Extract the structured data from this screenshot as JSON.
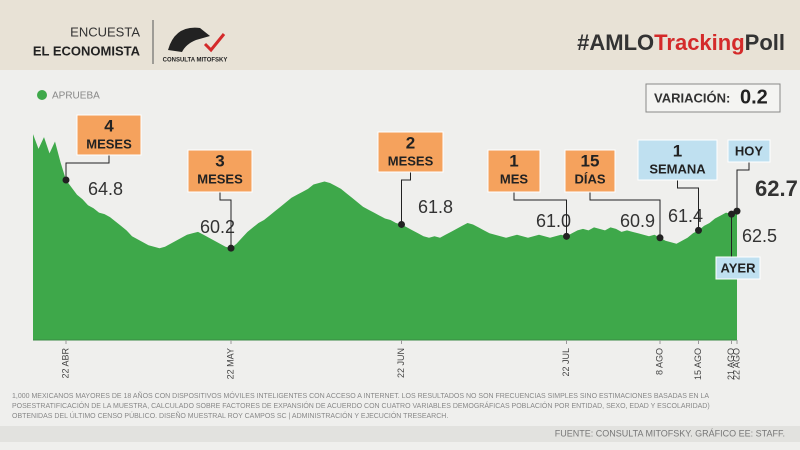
{
  "header": {
    "outlet_lines": [
      "ENCUESTA",
      "EL ECONOMISTA"
    ],
    "logo_text": "CONSULTA MITOFSKY",
    "hashtag_parts": [
      "#AMLO",
      "Tracking",
      "Poll"
    ]
  },
  "variation": {
    "label": "VARIACIÓN:",
    "value": "0.2"
  },
  "chart_data": {
    "type": "area",
    "series": [
      {
        "name": "APRUEBA",
        "color": "#3ea84a",
        "values": [
          67.9,
          66.9,
          67.7,
          66.6,
          67.4,
          66.0,
          64.8,
          64.3,
          63.8,
          63.5,
          63.1,
          62.9,
          62.6,
          62.5,
          62.3,
          62.0,
          61.7,
          61.4,
          61.0,
          60.8,
          60.6,
          60.4,
          60.3,
          60.2,
          60.3,
          60.5,
          60.7,
          60.9,
          61.1,
          61.2,
          61.3,
          61.1,
          60.9,
          60.7,
          60.5,
          60.3,
          60.2,
          60.5,
          60.9,
          61.3,
          61.6,
          61.9,
          62.1,
          62.4,
          62.7,
          63.0,
          63.3,
          63.6,
          63.8,
          64.0,
          64.2,
          64.5,
          64.6,
          64.7,
          64.6,
          64.4,
          64.2,
          63.9,
          63.6,
          63.3,
          63.0,
          62.8,
          62.6,
          62.4,
          62.2,
          62.1,
          61.9,
          61.8,
          61.6,
          61.4,
          61.2,
          61.0,
          60.9,
          61.0,
          60.9,
          61.1,
          61.3,
          61.5,
          61.7,
          61.9,
          61.8,
          61.6,
          61.4,
          61.2,
          61.1,
          61.0,
          60.9,
          61.0,
          61.1,
          61.0,
          60.9,
          61.0,
          61.1,
          61.0,
          60.9,
          61.0,
          61.1,
          61.0,
          61.2,
          61.4,
          61.5,
          61.4,
          61.6,
          61.5,
          61.4,
          61.6,
          61.5,
          61.3,
          61.4,
          61.3,
          61.2,
          61.1,
          61.0,
          61.1,
          60.9,
          60.7,
          60.6,
          60.5,
          60.7,
          60.9,
          61.2,
          61.4,
          61.7,
          61.9,
          62.2,
          62.4,
          62.6,
          62.5,
          62.7
        ],
        "value_labels": [
          null,
          null,
          null,
          null,
          null,
          null,
          "64.8",
          null,
          null,
          null,
          null,
          null,
          null,
          null,
          null,
          null,
          null,
          null,
          null,
          null,
          null,
          null,
          null,
          null,
          null,
          null,
          null,
          null,
          null,
          null,
          null,
          null,
          null,
          null,
          null,
          null,
          "60.2",
          null,
          null,
          null,
          null,
          null,
          null,
          null,
          null,
          null,
          null,
          null,
          null,
          null,
          null,
          null,
          null,
          null,
          null,
          null,
          null,
          null,
          null,
          null,
          null,
          null,
          null,
          null,
          null,
          null,
          null,
          "61.8",
          null,
          null,
          null,
          null,
          null,
          null,
          null,
          null,
          null,
          null,
          null,
          null,
          null,
          null,
          null,
          null,
          null,
          null,
          null,
          null,
          null,
          null,
          null,
          null,
          null,
          null,
          null,
          null,
          null,
          "61.0",
          null,
          null,
          null,
          null,
          null,
          null,
          null,
          null,
          null,
          null,
          null,
          null,
          null,
          null,
          null,
          null,
          "60.9",
          null,
          null,
          null,
          null,
          null,
          null,
          "61.4",
          null,
          null,
          null,
          null,
          null,
          "62.5",
          "62.7"
        ]
      }
    ],
    "categories": [
      null,
      null,
      null,
      null,
      null,
      null,
      "22 ABR",
      null,
      null,
      null,
      null,
      null,
      null,
      null,
      null,
      null,
      null,
      null,
      null,
      null,
      null,
      null,
      null,
      null,
      null,
      null,
      null,
      null,
      null,
      null,
      null,
      null,
      null,
      null,
      null,
      null,
      "22 MAY",
      null,
      null,
      null,
      null,
      null,
      null,
      null,
      null,
      null,
      null,
      null,
      null,
      null,
      null,
      null,
      null,
      null,
      null,
      null,
      null,
      null,
      null,
      null,
      null,
      null,
      null,
      null,
      null,
      null,
      null,
      "22 JUN",
      null,
      null,
      null,
      null,
      null,
      null,
      null,
      null,
      null,
      null,
      null,
      null,
      null,
      null,
      null,
      null,
      null,
      null,
      null,
      null,
      null,
      null,
      null,
      null,
      null,
      null,
      null,
      null,
      null,
      "22 JUL",
      null,
      null,
      null,
      null,
      null,
      null,
      null,
      null,
      null,
      null,
      null,
      null,
      null,
      null,
      null,
      null,
      "8 AGO",
      null,
      null,
      null,
      null,
      null,
      null,
      "15 AGO",
      null,
      null,
      null,
      null,
      null,
      "21 AGO",
      "22 AGO"
    ],
    "ylim": [
      54,
      70
    ],
    "callouts": [
      {
        "lines": [
          "4",
          "MESES"
        ],
        "date": "22 ABR",
        "color": "#f5a25d"
      },
      {
        "lines": [
          "3",
          "MESES"
        ],
        "date": "22 MAY",
        "color": "#f5a25d"
      },
      {
        "lines": [
          "2",
          "MESES"
        ],
        "date": "22 JUN",
        "color": "#f5a25d"
      },
      {
        "lines": [
          "1",
          "MES"
        ],
        "date": "22 JUL",
        "color": "#f5a25d"
      },
      {
        "lines": [
          "15",
          "DÍAS"
        ],
        "date": "8 AGO",
        "color": "#f5a25d"
      },
      {
        "lines": [
          "1",
          "SEMANA"
        ],
        "date": "15 AGO",
        "color": "#bfe0f0"
      },
      {
        "lines": [
          "HOY"
        ],
        "date": "22 AGO",
        "color": "#bfe0f0"
      },
      {
        "lines": [
          "AYER"
        ],
        "date": "21 AGO",
        "color": "#bfe0f0"
      }
    ]
  },
  "footnote": [
    "1,000 MEXICANOS MAYORES DE 18 AÑOS CON DISPOSITIVOS MÓVILES INTELIGENTES CON ACCESO A INTERNET. LOS RESULTADOS NO SON FRECUENCIAS SIMPLES SINO ESTIMACIONES BASADAS EN LA",
    "POSESTRATIFICACIÓN DE LA MUESTRA, CALCULADO SOBRE FACTORES DE EXPANSIÓN DE ACUERDO CON CUATRO VARIABLES DEMOGRÁFICAS POBLACIÓN POR ENTIDAD, SEXO, EDAD Y ESCOLARIDAD)",
    "OBTENIDAS DEL ÚLTIMO CENSO PÚBLICO. DISEÑO MUESTRAL ROY CAMPOS SC | ADMINISTRACIÓN Y EJECUCIÓN TRESEARCH."
  ],
  "source": "FUENTE: CONSULTA MITOFSKY. GRÁFICO EE: STAFF."
}
